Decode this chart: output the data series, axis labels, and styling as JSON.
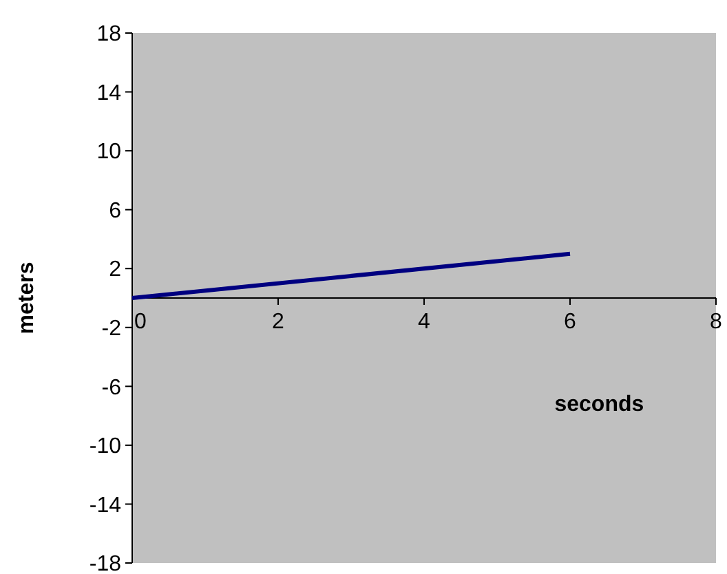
{
  "chart_data": {
    "type": "line",
    "xlabel": "seconds",
    "ylabel": "meters",
    "x": [
      0,
      6
    ],
    "series": [
      {
        "color": "#000080",
        "values": [
          0,
          3
        ]
      }
    ],
    "xlim": [
      0,
      8
    ],
    "xticks": [
      0,
      2,
      4,
      6,
      8
    ],
    "ylim": [
      -18,
      18
    ],
    "yticks": [
      -18,
      -14,
      -10,
      -6,
      -2,
      2,
      6,
      10,
      14,
      18
    ],
    "marker": "none",
    "line_style": "solid"
  }
}
